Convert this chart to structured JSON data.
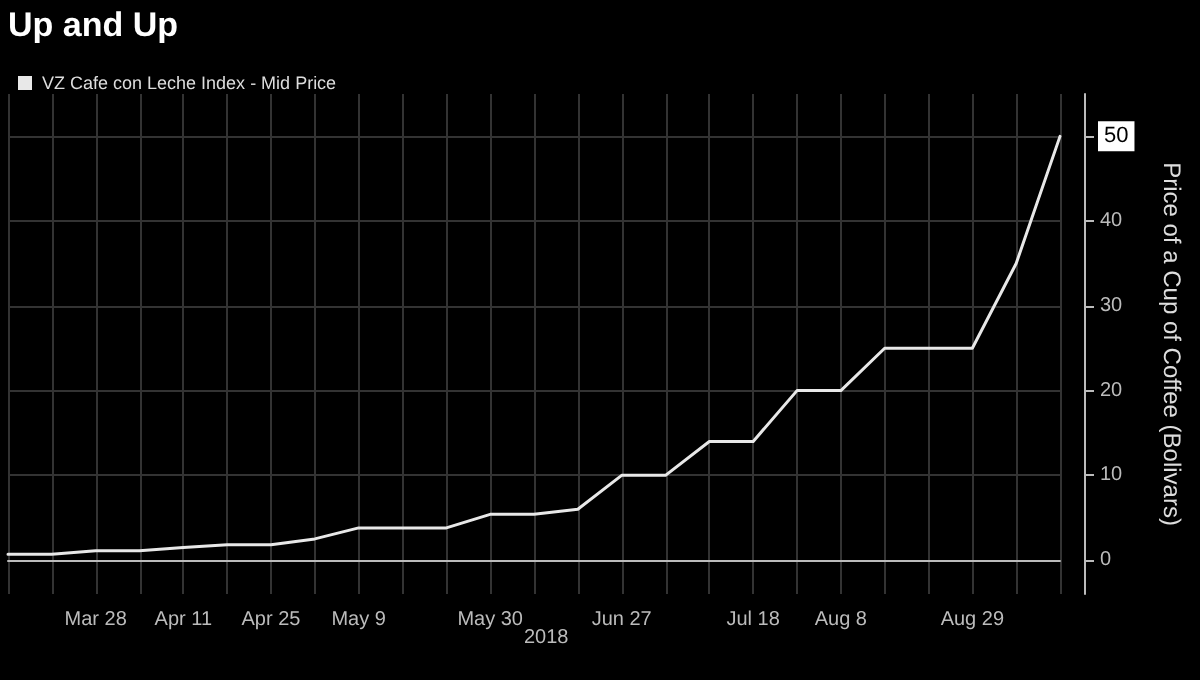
{
  "chart_data": {
    "type": "line",
    "title": "Up and Up",
    "ylabel": "Price of a Cup of Coffee (Bolivars)",
    "categories": [
      null,
      null,
      "Mar 28",
      null,
      "Apr 11",
      null,
      "Apr 25",
      null,
      "May 9",
      null,
      null,
      "May 30",
      null,
      null,
      "Jun 27",
      null,
      null,
      "Jul 18",
      null,
      "Aug 8",
      null,
      null,
      "Aug 29",
      null,
      null
    ],
    "series": [
      {
        "name": "VZ Cafe con Leche Index - Mid Price",
        "color": "#e8e8e8",
        "values": [
          0.7,
          0.7,
          1.1,
          1.1,
          1.5,
          1.8,
          1.8,
          2.5,
          3.8,
          3.8,
          3.8,
          5.4,
          5.4,
          6,
          10,
          10,
          14,
          14,
          20,
          20,
          25,
          25,
          25,
          35,
          50
        ],
        "value_labels": [
          null,
          null,
          null,
          null,
          null,
          null,
          null,
          null,
          null,
          null,
          null,
          null,
          null,
          null,
          null,
          null,
          null,
          null,
          null,
          null,
          null,
          null,
          null,
          null,
          "50"
        ]
      }
    ],
    "annotations": [
      "2018"
    ],
    "ylim": [
      -4,
      55
    ],
    "yticks": [
      0,
      10,
      20,
      30,
      40,
      50
    ],
    "grid": true,
    "legend": "top left",
    "marker": "none",
    "line_style": "solid"
  }
}
